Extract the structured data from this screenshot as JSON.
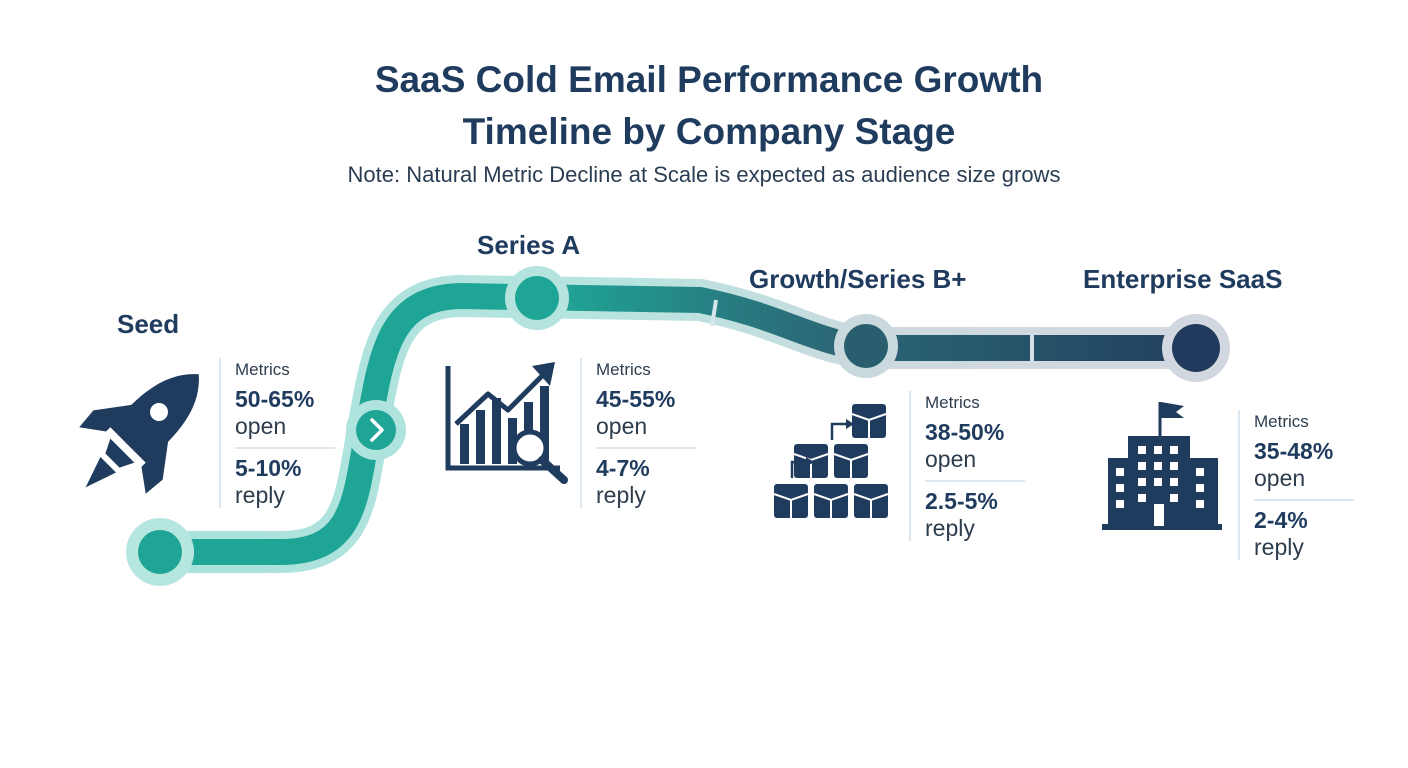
{
  "title": {
    "line1": "SaaS Cold Email Performance Growth",
    "line2": "Timeline by Company Stage"
  },
  "note": "Note: Natural Metric Decline at Scale is expected as audience size grows",
  "colors": {
    "teal": "#1fa596",
    "teal_glow": "#a9e2dc",
    "navy": "#1f3b5e",
    "slate": "#2b5a6e"
  },
  "stages": [
    {
      "name": "Seed",
      "icon": "rocket-icon",
      "metrics_label": "Metrics",
      "open_value": "50-65%",
      "open_label": "open",
      "reply_value": "5-10%",
      "reply_label": "reply"
    },
    {
      "name": "Series A",
      "icon": "growth-chart-magnifier-icon",
      "metrics_label": "Metrics",
      "open_value": "45-55%",
      "open_label": "open",
      "reply_value": "4-7%",
      "reply_label": "reply"
    },
    {
      "name": "Growth/Series B+",
      "icon": "stacked-cubes-icon",
      "metrics_label": "Metrics",
      "open_value": "38-50%",
      "open_label": "open",
      "reply_value": "2.5-5%",
      "reply_label": "reply"
    },
    {
      "name": "Enterprise SaaS",
      "icon": "office-building-icon",
      "metrics_label": "Metrics",
      "open_value": "35-48%",
      "open_label": "open",
      "reply_value": "2-4%",
      "reply_label": "reply"
    }
  ]
}
